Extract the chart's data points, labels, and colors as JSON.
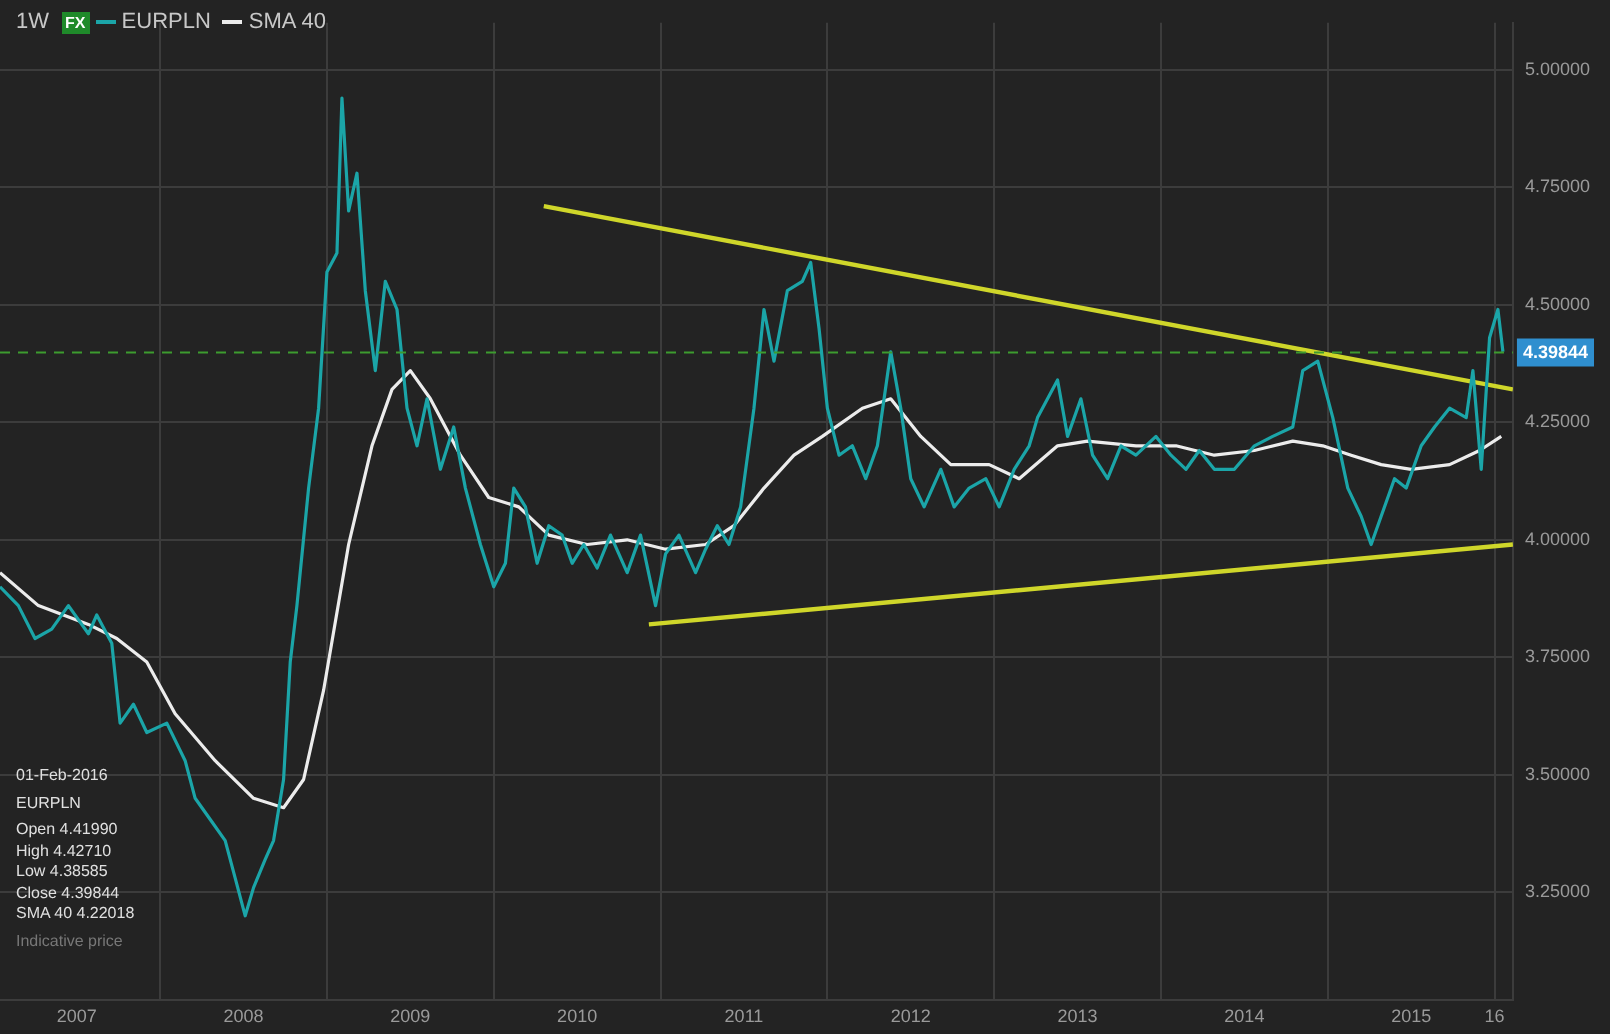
{
  "chart_data": {
    "type": "line",
    "marker": "none",
    "grid": true,
    "legend": "top left",
    "annotations": [
      "1W",
      "FX",
      "01-Feb-2016",
      "EURPLN",
      "Open 4.41990",
      "High 4.42710",
      "Low 4.38585",
      "Close 4.39844",
      "SMA 40 4.22018",
      "Indicative price"
    ],
    "xlim": [
      2007.04,
      2016.11
    ],
    "xticks": [
      {
        "value": 2007.5,
        "label": "2007"
      },
      {
        "value": 2008,
        "label": null
      },
      {
        "value": 2008.5,
        "label": "2008"
      },
      {
        "value": 2009,
        "label": null
      },
      {
        "value": 2009.5,
        "label": "2009"
      },
      {
        "value": 2010,
        "label": null
      },
      {
        "value": 2010.5,
        "label": "2010"
      },
      {
        "value": 2011,
        "label": null
      },
      {
        "value": 2011.5,
        "label": "2011"
      },
      {
        "value": 2012,
        "label": null
      },
      {
        "value": 2012.5,
        "label": "2012"
      },
      {
        "value": 2013,
        "label": null
      },
      {
        "value": 2013.5,
        "label": "2013"
      },
      {
        "value": 2014,
        "label": null
      },
      {
        "value": 2014.5,
        "label": "2014"
      },
      {
        "value": 2015,
        "label": null
      },
      {
        "value": 2015.5,
        "label": "2015"
      },
      {
        "value": 2016,
        "label": "16"
      }
    ],
    "ylim": [
      3.02,
      5.1
    ],
    "yticks": [
      {
        "value": 3.25,
        "label": "3.25000"
      },
      {
        "value": 3.5,
        "label": "3.50000"
      },
      {
        "value": 3.75,
        "label": "3.75000"
      },
      {
        "value": 4,
        "label": "4.00000"
      },
      {
        "value": 4.25,
        "label": "4.25000"
      },
      {
        "value": 4.5,
        "label": "4.50000"
      },
      {
        "value": 4.75,
        "label": "4.75000"
      },
      {
        "value": 5,
        "label": "5.00000"
      }
    ],
    "ref_lines": [
      {
        "axis": "y",
        "value": 4.39844,
        "label": "4.39844",
        "color": "#3d9b2f",
        "line_style": "dashed"
      }
    ],
    "series": [
      {
        "name": "EURPLN",
        "color": "#1ba5a8",
        "x": [
          2007.04,
          2007.15,
          2007.25,
          2007.35,
          2007.45,
          2007.57,
          2007.62,
          2007.71,
          2007.76,
          2007.84,
          2007.92,
          2008.04,
          2008.15,
          2008.21,
          2008.31,
          2008.39,
          2008.45,
          2008.51,
          2008.56,
          2008.63,
          2008.68,
          2008.74,
          2008.78,
          2008.82,
          2008.89,
          2008.95,
          2009.0,
          2009.06,
          2009.09,
          2009.13,
          2009.18,
          2009.23,
          2009.29,
          2009.35,
          2009.42,
          2009.48,
          2009.54,
          2009.6,
          2009.68,
          2009.76,
          2009.83,
          2009.92,
          2010.0,
          2010.07,
          2010.12,
          2010.19,
          2010.26,
          2010.33,
          2010.41,
          2010.47,
          2010.54,
          2010.62,
          2010.7,
          2010.8,
          2010.88,
          2010.97,
          2011.03,
          2011.11,
          2011.21,
          2011.27,
          2011.34,
          2011.41,
          2011.48,
          2011.56,
          2011.62,
          2011.68,
          2011.76,
          2011.85,
          2011.9,
          2011.95,
          2012.0,
          2012.07,
          2012.15,
          2012.23,
          2012.3,
          2012.38,
          2012.44,
          2012.5,
          2012.58,
          2012.68,
          2012.76,
          2012.85,
          2012.95,
          2013.03,
          2013.12,
          2013.21,
          2013.26,
          2013.38,
          2013.44,
          2013.52,
          2013.59,
          2013.68,
          2013.76,
          2013.85,
          2013.97,
          2014.06,
          2014.15,
          2014.23,
          2014.32,
          2014.44,
          2014.56,
          2014.67,
          2014.79,
          2014.85,
          2014.94,
          2015.03,
          2015.12,
          2015.2,
          2015.26,
          2015.32,
          2015.4,
          2015.47,
          2015.56,
          2015.64,
          2015.73,
          2015.83,
          2015.87,
          2015.92,
          2015.97,
          2016.02,
          2016.05
        ],
        "values": [
          3.9,
          3.86,
          3.79,
          3.81,
          3.86,
          3.8,
          3.84,
          3.78,
          3.61,
          3.65,
          3.59,
          3.61,
          3.53,
          3.45,
          3.4,
          3.36,
          3.28,
          3.2,
          3.26,
          3.32,
          3.36,
          3.49,
          3.74,
          3.86,
          4.11,
          4.28,
          4.57,
          4.61,
          4.94,
          4.7,
          4.78,
          4.53,
          4.36,
          4.55,
          4.49,
          4.28,
          4.2,
          4.3,
          4.15,
          4.24,
          4.11,
          3.99,
          3.9,
          3.95,
          4.11,
          4.07,
          3.95,
          4.03,
          4.01,
          3.95,
          3.99,
          3.94,
          4.01,
          3.93,
          4.01,
          3.86,
          3.97,
          4.01,
          3.93,
          3.98,
          4.03,
          3.99,
          4.07,
          4.28,
          4.49,
          4.38,
          4.53,
          4.55,
          4.59,
          4.45,
          4.28,
          4.18,
          4.2,
          4.13,
          4.2,
          4.4,
          4.28,
          4.13,
          4.07,
          4.15,
          4.07,
          4.11,
          4.13,
          4.07,
          4.15,
          4.2,
          4.26,
          4.34,
          4.22,
          4.3,
          4.18,
          4.13,
          4.2,
          4.18,
          4.22,
          4.18,
          4.15,
          4.19,
          4.15,
          4.15,
          4.2,
          4.22,
          4.24,
          4.36,
          4.38,
          4.26,
          4.11,
          4.05,
          3.99,
          4.05,
          4.13,
          4.11,
          4.2,
          4.24,
          4.28,
          4.26,
          4.36,
          4.15,
          4.43,
          4.49,
          4.4
        ]
      },
      {
        "name": "SMA 40",
        "color": "#ececec",
        "x": [
          2007.04,
          2007.27,
          2007.57,
          2007.74,
          2007.92,
          2008.09,
          2008.33,
          2008.56,
          2008.74,
          2008.86,
          2008.98,
          2009.13,
          2009.27,
          2009.39,
          2009.5,
          2009.62,
          2009.8,
          2009.97,
          2010.15,
          2010.33,
          2010.56,
          2010.8,
          2011.03,
          2011.27,
          2011.44,
          2011.62,
          2011.8,
          2011.97,
          2012.21,
          2012.38,
          2012.56,
          2012.74,
          2012.97,
          2013.15,
          2013.38,
          2013.56,
          2013.85,
          2014.09,
          2014.32,
          2014.56,
          2014.79,
          2014.97,
          2015.14,
          2015.32,
          2015.5,
          2015.73,
          2015.91,
          2016.04
        ],
        "values": [
          3.93,
          3.86,
          3.82,
          3.79,
          3.74,
          3.63,
          3.53,
          3.45,
          3.43,
          3.49,
          3.68,
          3.99,
          4.2,
          4.32,
          4.36,
          4.3,
          4.18,
          4.09,
          4.07,
          4.01,
          3.99,
          4.0,
          3.98,
          3.99,
          4.03,
          4.11,
          4.18,
          4.22,
          4.28,
          4.3,
          4.22,
          4.16,
          4.16,
          4.13,
          4.2,
          4.21,
          4.2,
          4.2,
          4.18,
          4.19,
          4.21,
          4.2,
          4.18,
          4.16,
          4.15,
          4.16,
          4.19,
          4.22
        ]
      },
      {
        "color": "#cfd62a",
        "x": [
          2010.3,
          2016.11
        ],
        "values": [
          4.71,
          4.32
        ]
      },
      {
        "color": "#cfd62a",
        "x": [
          2010.93,
          2016.11
        ],
        "values": [
          3.82,
          3.99
        ]
      }
    ]
  }
}
